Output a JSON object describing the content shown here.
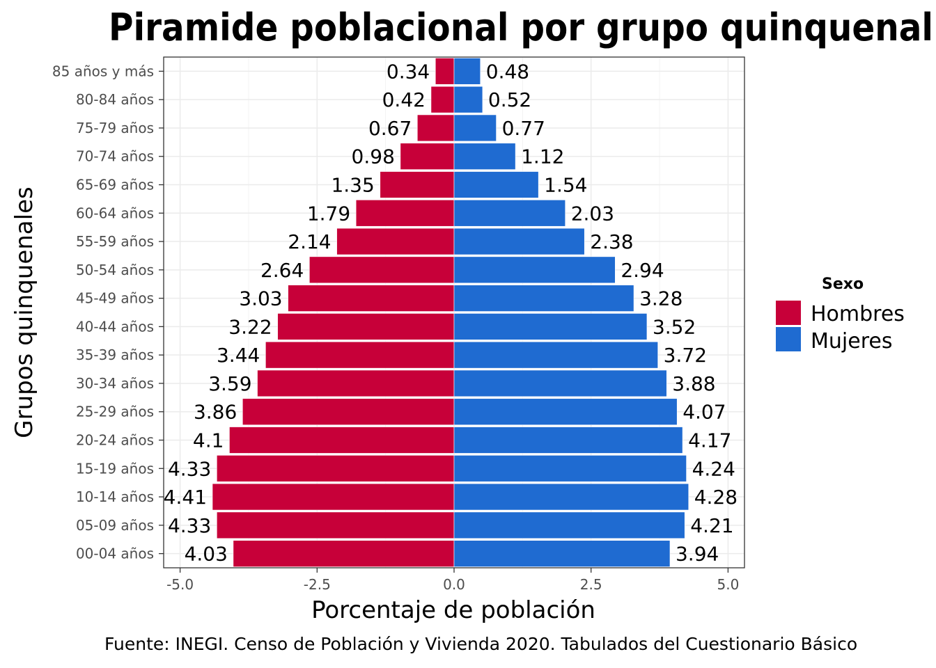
{
  "chart_data": {
    "type": "bar",
    "orientation": "horizontal",
    "title": "Piramide poblacional por grupo quinquenal",
    "xlabel": "Porcentaje de población",
    "ylabel": "Grupos quinquenales",
    "caption": "Fuente: INEGI. Censo de Población y Vivienda 2020. Tabulados del Cuestionario Básico",
    "categories": [
      "85 años y más",
      "80-84 años",
      "75-79 años",
      "70-74 años",
      "65-69 años",
      "60-64 años",
      "55-59 años",
      "50-54 años",
      "45-49 años",
      "40-44 años",
      "35-39 años",
      "30-34 años",
      "25-29 años",
      "20-24 años",
      "15-19 años",
      "10-14 años",
      "05-09 años",
      "00-04 años"
    ],
    "series": [
      {
        "name": "Hombres",
        "color": "#c70039",
        "values": [
          -0.34,
          -0.42,
          -0.67,
          -0.98,
          -1.35,
          -1.79,
          -2.14,
          -2.64,
          -3.03,
          -3.22,
          -3.44,
          -3.59,
          -3.86,
          -4.1,
          -4.33,
          -4.41,
          -4.33,
          -4.03
        ],
        "labels": [
          "0.34",
          "0.42",
          "0.67",
          "0.98",
          "1.35",
          "1.79",
          "2.14",
          "2.64",
          "3.03",
          "3.22",
          "3.44",
          "3.59",
          "3.86",
          "4.1",
          "4.33",
          "4.41",
          "4.33",
          "4.03"
        ]
      },
      {
        "name": "Mujeres",
        "color": "#1f6bd1",
        "values": [
          0.48,
          0.52,
          0.77,
          1.12,
          1.54,
          2.03,
          2.38,
          2.94,
          3.28,
          3.52,
          3.72,
          3.88,
          4.07,
          4.17,
          4.24,
          4.28,
          4.21,
          3.94
        ],
        "labels": [
          "0.48",
          "0.52",
          "0.77",
          "1.12",
          "1.54",
          "2.03",
          "2.38",
          "2.94",
          "3.28",
          "3.52",
          "3.72",
          "3.88",
          "4.07",
          "4.17",
          "4.24",
          "4.28",
          "4.21",
          "3.94"
        ]
      }
    ],
    "xticks": [
      -5.0,
      -2.5,
      0.0,
      2.5,
      5.0
    ],
    "xtick_labels": [
      "-5.0",
      "-2.5",
      "0.0",
      "2.5",
      "5.0"
    ],
    "xlim": [
      -5.3,
      5.3
    ],
    "legend": {
      "title": "Sexo",
      "position": "right"
    },
    "grid": true
  }
}
